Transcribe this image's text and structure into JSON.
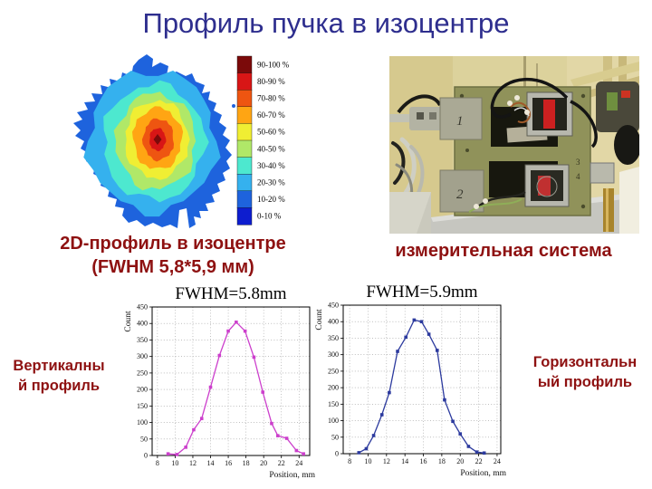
{
  "slide": {
    "title": "Профиль пучка в изоцентре"
  },
  "colors": {
    "title": "#2e2e8e",
    "caption": "#8e1111"
  },
  "captions": {
    "heatmap_line1": "2D-профиль в изоцентре",
    "heatmap_line2": "(FWHM 5,8*5,9 мм)",
    "photo": "измерительная система",
    "vertical_line1": "Вертикалны",
    "vertical_line2": "й профиль",
    "horizontal_line1": "Горизонтальн",
    "horizontal_line2": "ый профиль"
  },
  "chart_data": [
    {
      "type": "heatmap",
      "name": "2D профиль пучка в изоцентре",
      "legend_position": "right",
      "legend_bins": [
        {
          "label": "90-100 %",
          "color": "#7b0a0a"
        },
        {
          "label": "80-90 %",
          "color": "#d81616"
        },
        {
          "label": "70-80 %",
          "color": "#ee5511"
        },
        {
          "label": "60-70 %",
          "color": "#ffa513"
        },
        {
          "label": "50-60 %",
          "color": "#f0ee33"
        },
        {
          "label": "40-50 %",
          "color": "#b0e868"
        },
        {
          "label": "30-40 %",
          "color": "#4de8cf"
        },
        {
          "label": "20-30 %",
          "color": "#35b1ee"
        },
        {
          "label": "10-20 %",
          "color": "#1e63dd"
        },
        {
          "label": "0-10 %",
          "color": "#0d1dcf"
        }
      ]
    },
    {
      "type": "line",
      "title": "FWHM=5.8mm",
      "series_name": "Вертикальный профиль",
      "xlabel": "Position, mm",
      "ylabel": "Count",
      "xlim": [
        7.4,
        25.2
      ],
      "ylim": [
        0,
        450
      ],
      "xticks": [
        8,
        10,
        12,
        14,
        16,
        18,
        20,
        22,
        24
      ],
      "yticks": [
        0,
        50,
        100,
        150,
        200,
        250,
        300,
        350,
        400,
        450
      ],
      "grid": true,
      "line_color": "#cc3fcc",
      "x": [
        9.2,
        10.2,
        11.2,
        12.1,
        13.0,
        14.0,
        15.0,
        16.0,
        16.9,
        17.9,
        18.9,
        19.9,
        20.9,
        21.6,
        22.6,
        23.7,
        24.5
      ],
      "y": [
        5,
        3,
        25,
        78,
        112,
        207,
        303,
        377,
        404,
        377,
        298,
        192,
        97,
        60,
        52,
        15,
        5
      ]
    },
    {
      "type": "line",
      "title": "FWHM=5.9mm",
      "series_name": "Горизонтальный профиль",
      "xlabel": "Position, mm",
      "ylabel": "Count",
      "xlim": [
        7.3,
        24.4
      ],
      "ylim": [
        0,
        450
      ],
      "xticks": [
        8,
        10,
        12,
        14,
        16,
        18,
        20,
        22,
        24
      ],
      "yticks": [
        0,
        50,
        100,
        150,
        200,
        250,
        300,
        350,
        400,
        450
      ],
      "grid": true,
      "line_color": "#2c3a9e",
      "x": [
        9.0,
        9.8,
        10.6,
        11.5,
        12.3,
        13.2,
        14.1,
        15.0,
        15.8,
        16.6,
        17.5,
        18.3,
        19.2,
        20.0,
        20.9,
        21.8,
        22.6
      ],
      "y": [
        3,
        15,
        55,
        118,
        185,
        310,
        353,
        405,
        400,
        362,
        313,
        163,
        98,
        60,
        22,
        5,
        2
      ]
    }
  ]
}
